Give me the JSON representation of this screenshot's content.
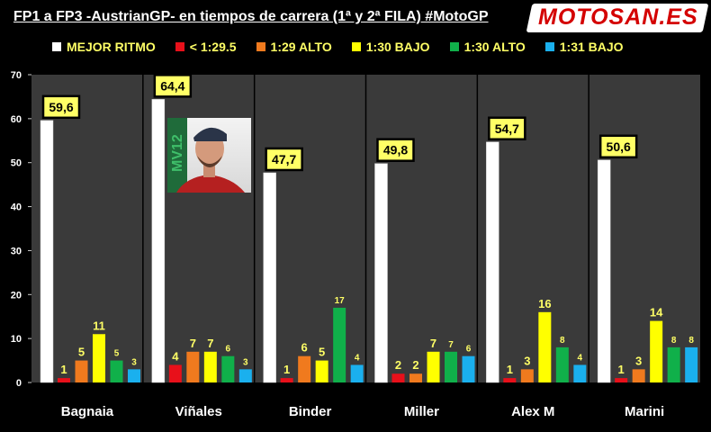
{
  "title": "FP1 a FP3 -AustrianGP- en tiempos de carrera (1ª y 2ª FILA) #MotoGP",
  "logo_text": "MOTOSAN.ES",
  "colors": {
    "background": "#000000",
    "plot_bg": "#3a3a3a",
    "label_bg": "#ffff66",
    "brand_red": "#d40000"
  },
  "photo_icon": "rider-portrait-photo",
  "chart_data": {
    "type": "bar",
    "title": "",
    "xlabel": "",
    "ylabel": "",
    "ylim": [
      0,
      70
    ],
    "yticks": [
      0,
      10,
      20,
      30,
      40,
      50,
      60,
      70
    ],
    "grid": false,
    "legend_position": "top",
    "categories": [
      "Bagnaia",
      "Viñales",
      "Binder",
      "Miller",
      "Alex M",
      "Marini"
    ],
    "series": [
      {
        "name": "MEJOR RITMO",
        "color": "#ffffff",
        "values": [
          59.6,
          64.4,
          47.7,
          49.8,
          54.7,
          50.6
        ],
        "labels": [
          "59,6",
          "64,4",
          "47,7",
          "49,8",
          "54,7",
          "50,6"
        ]
      },
      {
        "name": "< 1:29.5",
        "color": "#e8101a",
        "values": [
          1,
          4,
          1,
          2,
          1,
          1
        ]
      },
      {
        "name": "1:29 ALTO",
        "color": "#f07a1e",
        "values": [
          5,
          7,
          6,
          2,
          3,
          3
        ]
      },
      {
        "name": "1:30 BAJO",
        "color": "#ffff00",
        "values": [
          11,
          7,
          5,
          7,
          16,
          14
        ]
      },
      {
        "name": "1:30 ALTO",
        "color": "#10b04a",
        "values": [
          5,
          6,
          17,
          7,
          8,
          8
        ]
      },
      {
        "name": "1:31 BAJO",
        "color": "#1ab0ee",
        "values": [
          3,
          3,
          4,
          6,
          4,
          8
        ]
      }
    ]
  }
}
